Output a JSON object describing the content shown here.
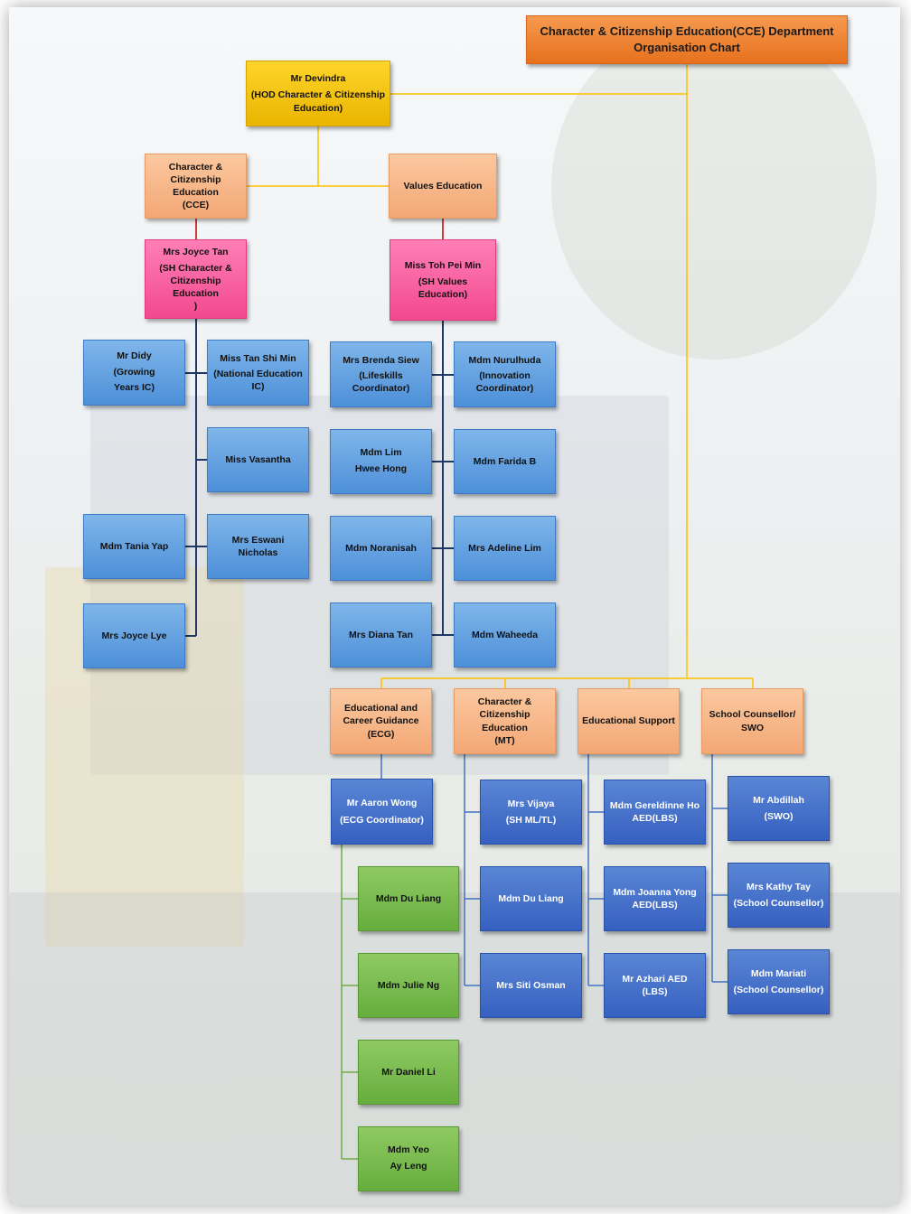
{
  "title": {
    "line1": "Character & Citizenship Education(CCE) Department",
    "line2": "Organisation Chart"
  },
  "hod": {
    "name": "Mr Devindra",
    "role": "(HOD Character & Citizenship Education)"
  },
  "branches": {
    "cce": {
      "header": [
        "Character &",
        "Citizenship Education",
        "(CCE)"
      ],
      "head": [
        "Mrs Joyce Tan",
        "(SH Character &",
        "Citizenship Education",
        ")"
      ],
      "members": {
        "didy": [
          "Mr Didy",
          "(Growing",
          "Years IC)"
        ],
        "tan_shi_min": [
          "Miss Tan Shi Min",
          "(National Education",
          "IC)"
        ],
        "vasantha": [
          "Miss Vasantha"
        ],
        "tania_yap": [
          "Mdm Tania Yap"
        ],
        "eswani": [
          "Mrs Eswani Nicholas"
        ],
        "joyce_lye": [
          "Mrs Joyce Lye"
        ]
      }
    },
    "values": {
      "header": [
        "Values Education"
      ],
      "head": [
        "Miss Toh Pei Min",
        "(SH Values Education)"
      ],
      "members": {
        "brenda": [
          "Mrs Brenda Siew",
          "(Lifeskills Coordinator)"
        ],
        "nurulhuda": [
          "Mdm Nurulhuda",
          "(Innovation",
          "Coordinator)"
        ],
        "lim_hwee_hong": [
          "Mdm Lim",
          "Hwee Hong"
        ],
        "farida": [
          "Mdm Farida B"
        ],
        "noranisah": [
          "Mdm Noranisah"
        ],
        "adeline": [
          "Mrs Adeline Lim"
        ],
        "diana": [
          "Mrs Diana Tan"
        ],
        "waheeda": [
          "Mdm Waheeda"
        ]
      }
    },
    "ecg": {
      "header": [
        "Educational and",
        "Career Guidance (ECG)"
      ],
      "head": [
        "Mr Aaron  Wong",
        "(ECG Coordinator)"
      ],
      "members": [
        [
          "Mdm Du Liang"
        ],
        [
          "Mdm Julie Ng"
        ],
        [
          "Mr Daniel Li"
        ],
        [
          "Mdm Yeo",
          "Ay Leng"
        ]
      ]
    },
    "mt": {
      "header": [
        "Character &",
        "Citizenship  Education",
        "(MT)"
      ],
      "members": [
        [
          "Mrs Vijaya",
          "(SH ML/TL)"
        ],
        [
          "Mdm Du Liang"
        ],
        [
          "Mrs Siti Osman"
        ]
      ]
    },
    "support": {
      "header": [
        "Educational Support"
      ],
      "members": [
        [
          "Mdm Gereldinne Ho",
          "AED(LBS)"
        ],
        [
          "Mdm Joanna Yong",
          "AED(LBS)"
        ],
        [
          "Mr Azhari AED (LBS)"
        ]
      ]
    },
    "counsellor": {
      "header": [
        "School Counsellor/",
        "SWO"
      ],
      "members": [
        [
          "Mr Abdillah",
          "(SWO)"
        ],
        [
          "Mrs Kathy Tay",
          "(School Counsellor)"
        ],
        [
          "Mdm Mariati",
          "(School Counsellor)"
        ]
      ]
    }
  },
  "colors": {
    "title": "#ee7d2b",
    "hod": "#ffc000",
    "section_header": "#f4b183",
    "sub_head": "#ff5fa2",
    "member_light_blue": "#5b9bd5",
    "member_dark_blue": "#4472c4",
    "member_green": "#70ad47",
    "line_gold": "#ffc000",
    "line_navy": "#1f3864",
    "line_red": "#c00000"
  }
}
